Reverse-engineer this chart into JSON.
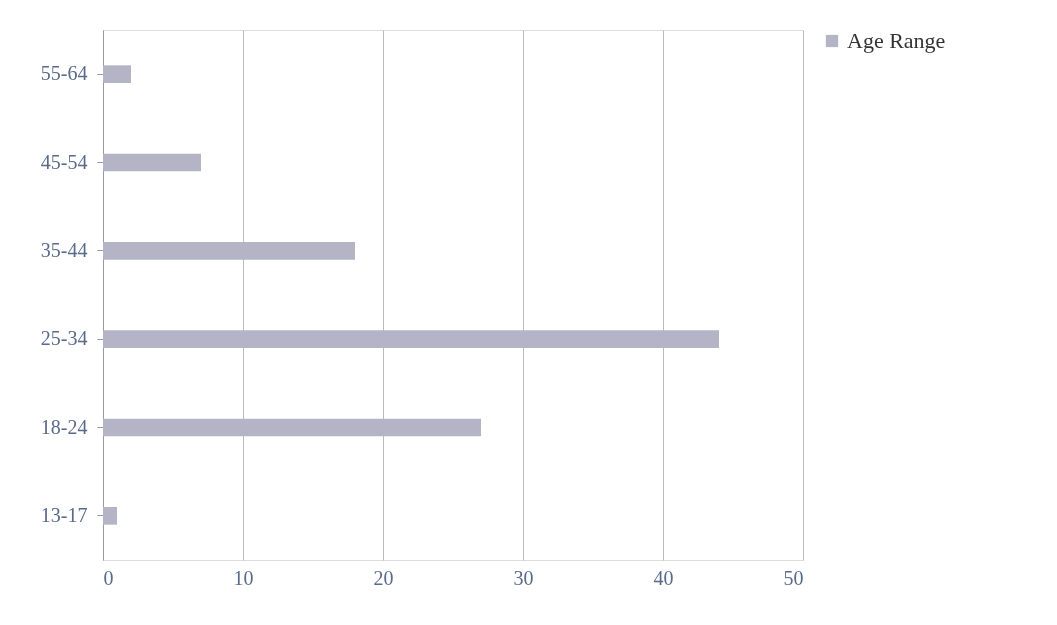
{
  "chart_data": {
    "type": "bar",
    "orientation": "horizontal",
    "categories": [
      "55-64",
      "45-54",
      "35-44",
      "25-34",
      "18-24",
      "13-17"
    ],
    "series": [
      {
        "name": "Age Range",
        "color": "#b4b4c6",
        "values": [
          2,
          7,
          18,
          44,
          27,
          1
        ]
      }
    ],
    "xlim": [
      0,
      50
    ],
    "xticks": [
      0,
      10,
      20,
      30,
      40,
      50
    ],
    "grid": "x",
    "legend": "right"
  }
}
